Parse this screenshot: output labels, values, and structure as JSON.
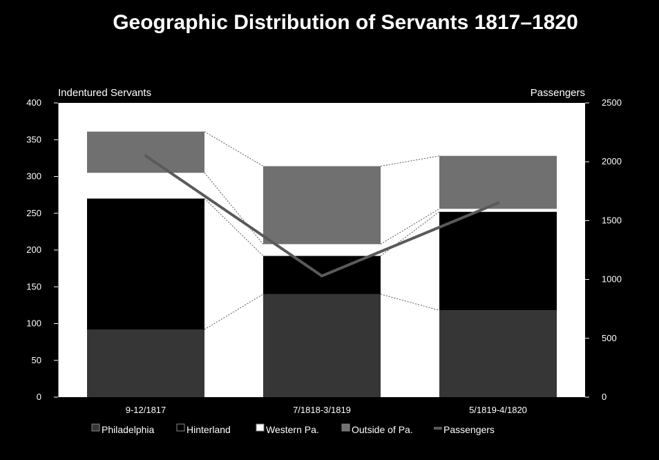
{
  "chart_data": {
    "type": "bar",
    "stacked": true,
    "title": "Geographic Distribution of Servants 1817–1820",
    "ylabel_left": "Indentured Servants",
    "ylabel_right": "Passengers",
    "ylim_left": [
      0,
      400
    ],
    "ylim_right": [
      0,
      2500
    ],
    "yticks_left": [
      "0",
      "50",
      "100",
      "150",
      "200",
      "250",
      "300",
      "350",
      "400"
    ],
    "yticks_right": [
      "0",
      "500",
      "1000",
      "1500",
      "2000",
      "2500"
    ],
    "categories": [
      "9-12/1817",
      "7/1818-3/1819",
      "5/1819-4/1820"
    ],
    "series": [
      {
        "name": "Philadelphia",
        "axis": "left",
        "values": [
          92,
          140,
          118
        ],
        "color": "#363636"
      },
      {
        "name": "Hinterland",
        "axis": "left",
        "values": [
          178,
          52,
          134
        ],
        "color": "#000000"
      },
      {
        "name": "Western Pa.",
        "axis": "left",
        "values": [
          35,
          16,
          4
        ],
        "color": "#ffffff"
      },
      {
        "name": "Outside of Pa.",
        "axis": "left",
        "values": [
          56,
          106,
          72
        ],
        "color": "#707070"
      },
      {
        "name": "Passengers",
        "axis": "right",
        "type": "line",
        "values": [
          2050,
          1030,
          1650
        ],
        "color": "#5a5a5a"
      }
    ],
    "legend_position": "bottom",
    "grid": false
  }
}
